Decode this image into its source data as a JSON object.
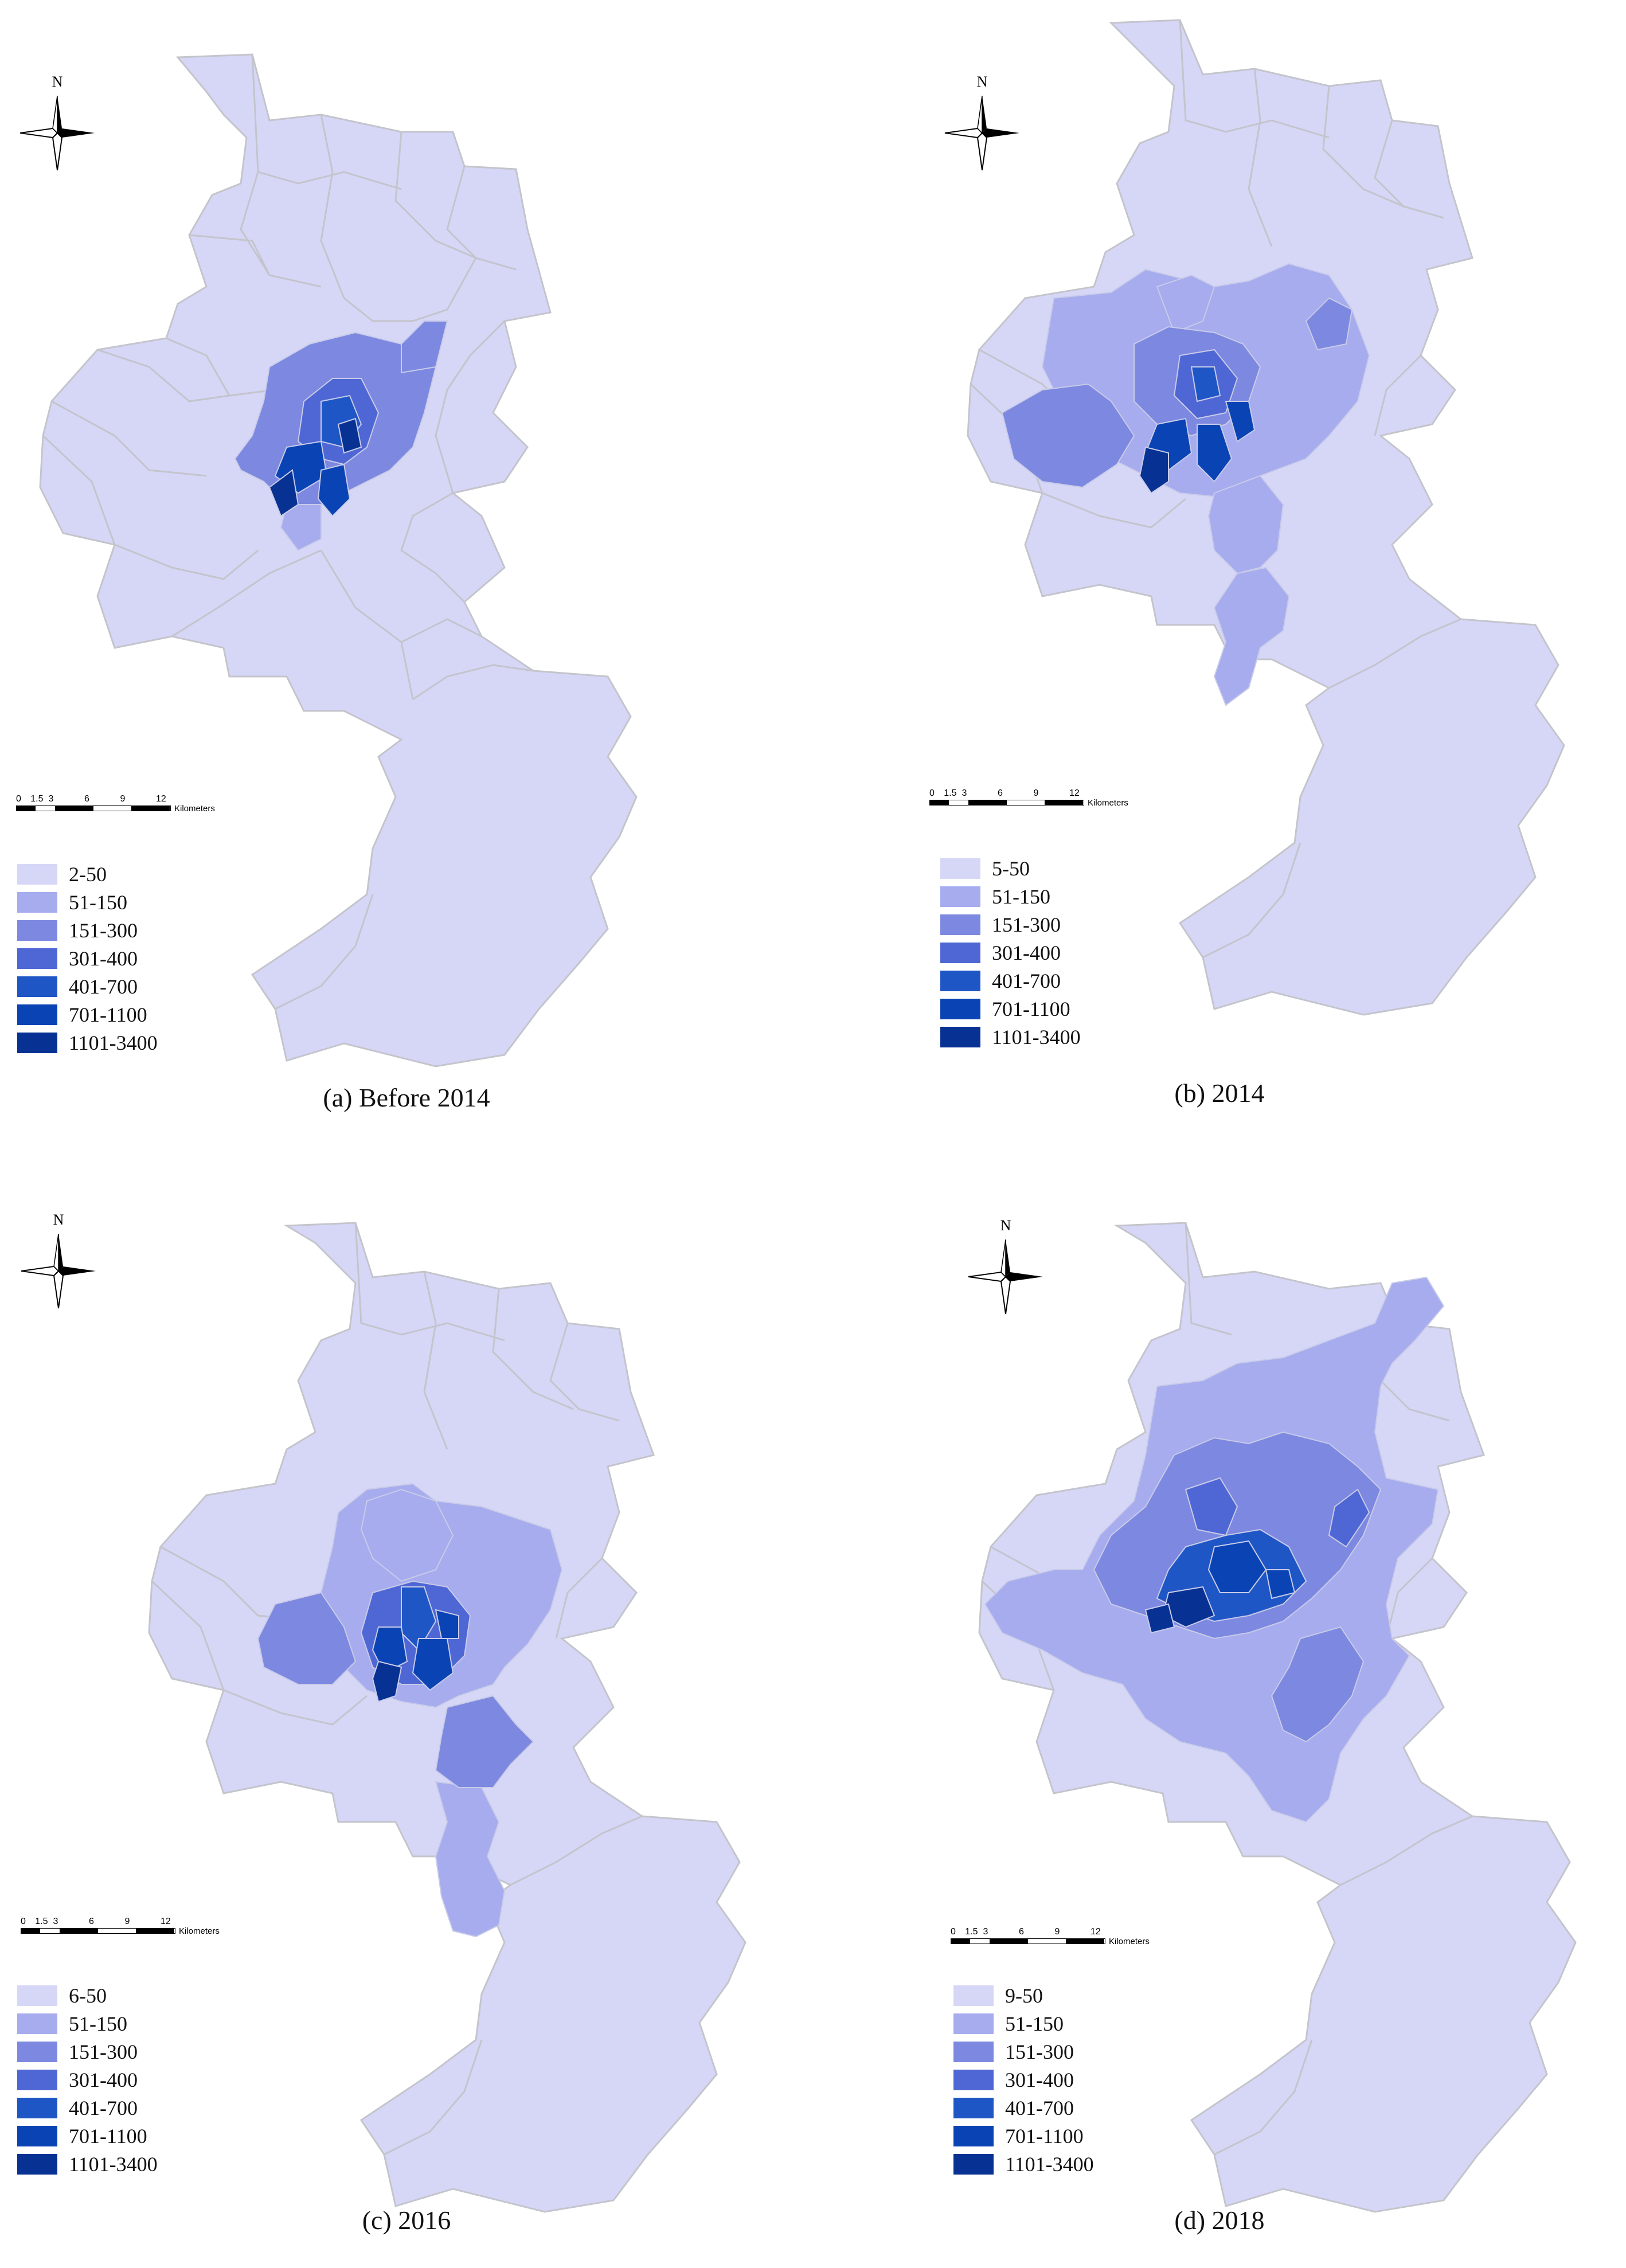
{
  "colors": {
    "background_region": "#d6d7f7",
    "boundary": "#c4c4cc",
    "classes": [
      "#d6d7f7",
      "#a6acee",
      "#7d88e0",
      "#4f67d4",
      "#1f56c6",
      "#0a44b4",
      "#073294"
    ]
  },
  "north_label": "N",
  "scale_bar": {
    "ticks": [
      "0",
      "1.5",
      "3",
      "6",
      "9",
      "12"
    ],
    "unit": "Kilometers"
  },
  "panels": [
    {
      "id": "a",
      "caption": "(a) Before 2014",
      "legend": [
        "2-50",
        "51-150",
        "151-300",
        "301-400",
        "401-700",
        "701-1100",
        "1101-3400"
      ]
    },
    {
      "id": "b",
      "caption": "(b) 2014",
      "legend": [
        "5-50",
        "51-150",
        "151-300",
        "301-400",
        "401-700",
        "701-1100",
        "1101-3400"
      ]
    },
    {
      "id": "c",
      "caption": "(c) 2016",
      "legend": [
        "6-50",
        "51-150",
        "151-300",
        "301-400",
        "401-700",
        "701-1100",
        "1101-3400"
      ]
    },
    {
      "id": "d",
      "caption": "(d) 2018",
      "legend": [
        "9-50",
        "51-150",
        "151-300",
        "301-400",
        "401-700",
        "701-1100",
        "1101-3400"
      ]
    }
  ]
}
